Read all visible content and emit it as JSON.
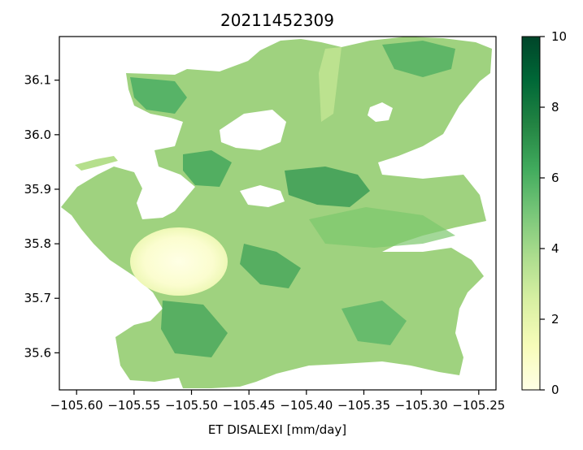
{
  "chart_data": {
    "type": "heatmap",
    "title": "20211452309",
    "xlabel": "ET DISALEXI [mm/day]",
    "ylabel": "",
    "xlim": [
      -105.615,
      -105.235
    ],
    "ylim": [
      35.532,
      36.18
    ],
    "x_ticks": [
      -105.6,
      -105.55,
      -105.5,
      -105.45,
      -105.4,
      -105.35,
      -105.3,
      -105.25
    ],
    "x_tick_labels": [
      "−105.60",
      "−105.55",
      "−105.50",
      "−105.45",
      "−105.40",
      "−105.35",
      "−105.30",
      "−105.25"
    ],
    "y_ticks": [
      35.6,
      35.7,
      35.8,
      35.9,
      36.0,
      36.1
    ],
    "y_tick_labels": [
      "35.6",
      "35.7",
      "35.8",
      "35.9",
      "36.0",
      "36.1"
    ],
    "colorbar": {
      "colormap": "YlGn",
      "vmin": 0,
      "vmax": 10,
      "ticks": [
        0,
        2,
        4,
        6,
        8,
        10
      ],
      "tick_labels": [
        "0",
        "2",
        "4",
        "6",
        "8",
        "10"
      ],
      "stops": [
        "#ffffe5",
        "#f7fcb9",
        "#d9f0a3",
        "#addd8e",
        "#78c679",
        "#41ab5d",
        "#238443",
        "#006837",
        "#004529"
      ]
    },
    "grid": false
  }
}
